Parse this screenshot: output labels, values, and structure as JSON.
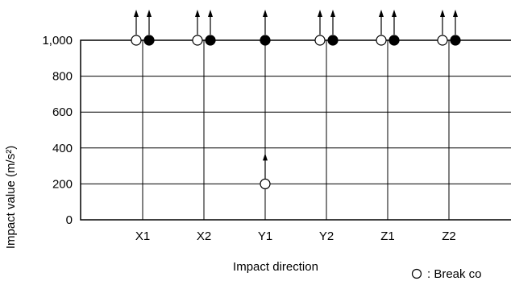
{
  "chart_data": {
    "type": "scatter",
    "xlabel": "Impact direction",
    "ylabel": "Impact value (m/s²)",
    "ylim": [
      0,
      1000
    ],
    "yticks": [
      "0",
      "200",
      "400",
      "600",
      "800",
      "1,000"
    ],
    "ytick_values": [
      0,
      200,
      400,
      600,
      800,
      1000
    ],
    "categories": [
      "X1",
      "X2",
      "Y1",
      "Y2",
      "Z1",
      "Z2"
    ],
    "grid": true,
    "series": [
      {
        "name": "Break",
        "marker": "open-circle",
        "points": [
          {
            "category": "X1",
            "y": 1000,
            "exceeds": true
          },
          {
            "category": "X2",
            "y": 1000,
            "exceeds": true
          },
          {
            "category": "Y1",
            "y": 200,
            "exceeds": true
          },
          {
            "category": "Y2",
            "y": 1000,
            "exceeds": true
          },
          {
            "category": "Z1",
            "y": 1000,
            "exceeds": true
          },
          {
            "category": "Z2",
            "y": 1000,
            "exceeds": true
          }
        ]
      },
      {
        "name": "",
        "marker": "filled-circle",
        "points": [
          {
            "category": "X1",
            "y": 1000,
            "exceeds": true
          },
          {
            "category": "X2",
            "y": 1000,
            "exceeds": true
          },
          {
            "category": "Y1",
            "y": 1000,
            "exceeds": true
          },
          {
            "category": "Y2",
            "y": 1000,
            "exceeds": true
          },
          {
            "category": "Z1",
            "y": 1000,
            "exceeds": true
          },
          {
            "category": "Z2",
            "y": 1000,
            "exceeds": true
          }
        ]
      }
    ],
    "legend": [
      {
        "marker": "open-circle",
        "text": ": Break co"
      }
    ]
  }
}
